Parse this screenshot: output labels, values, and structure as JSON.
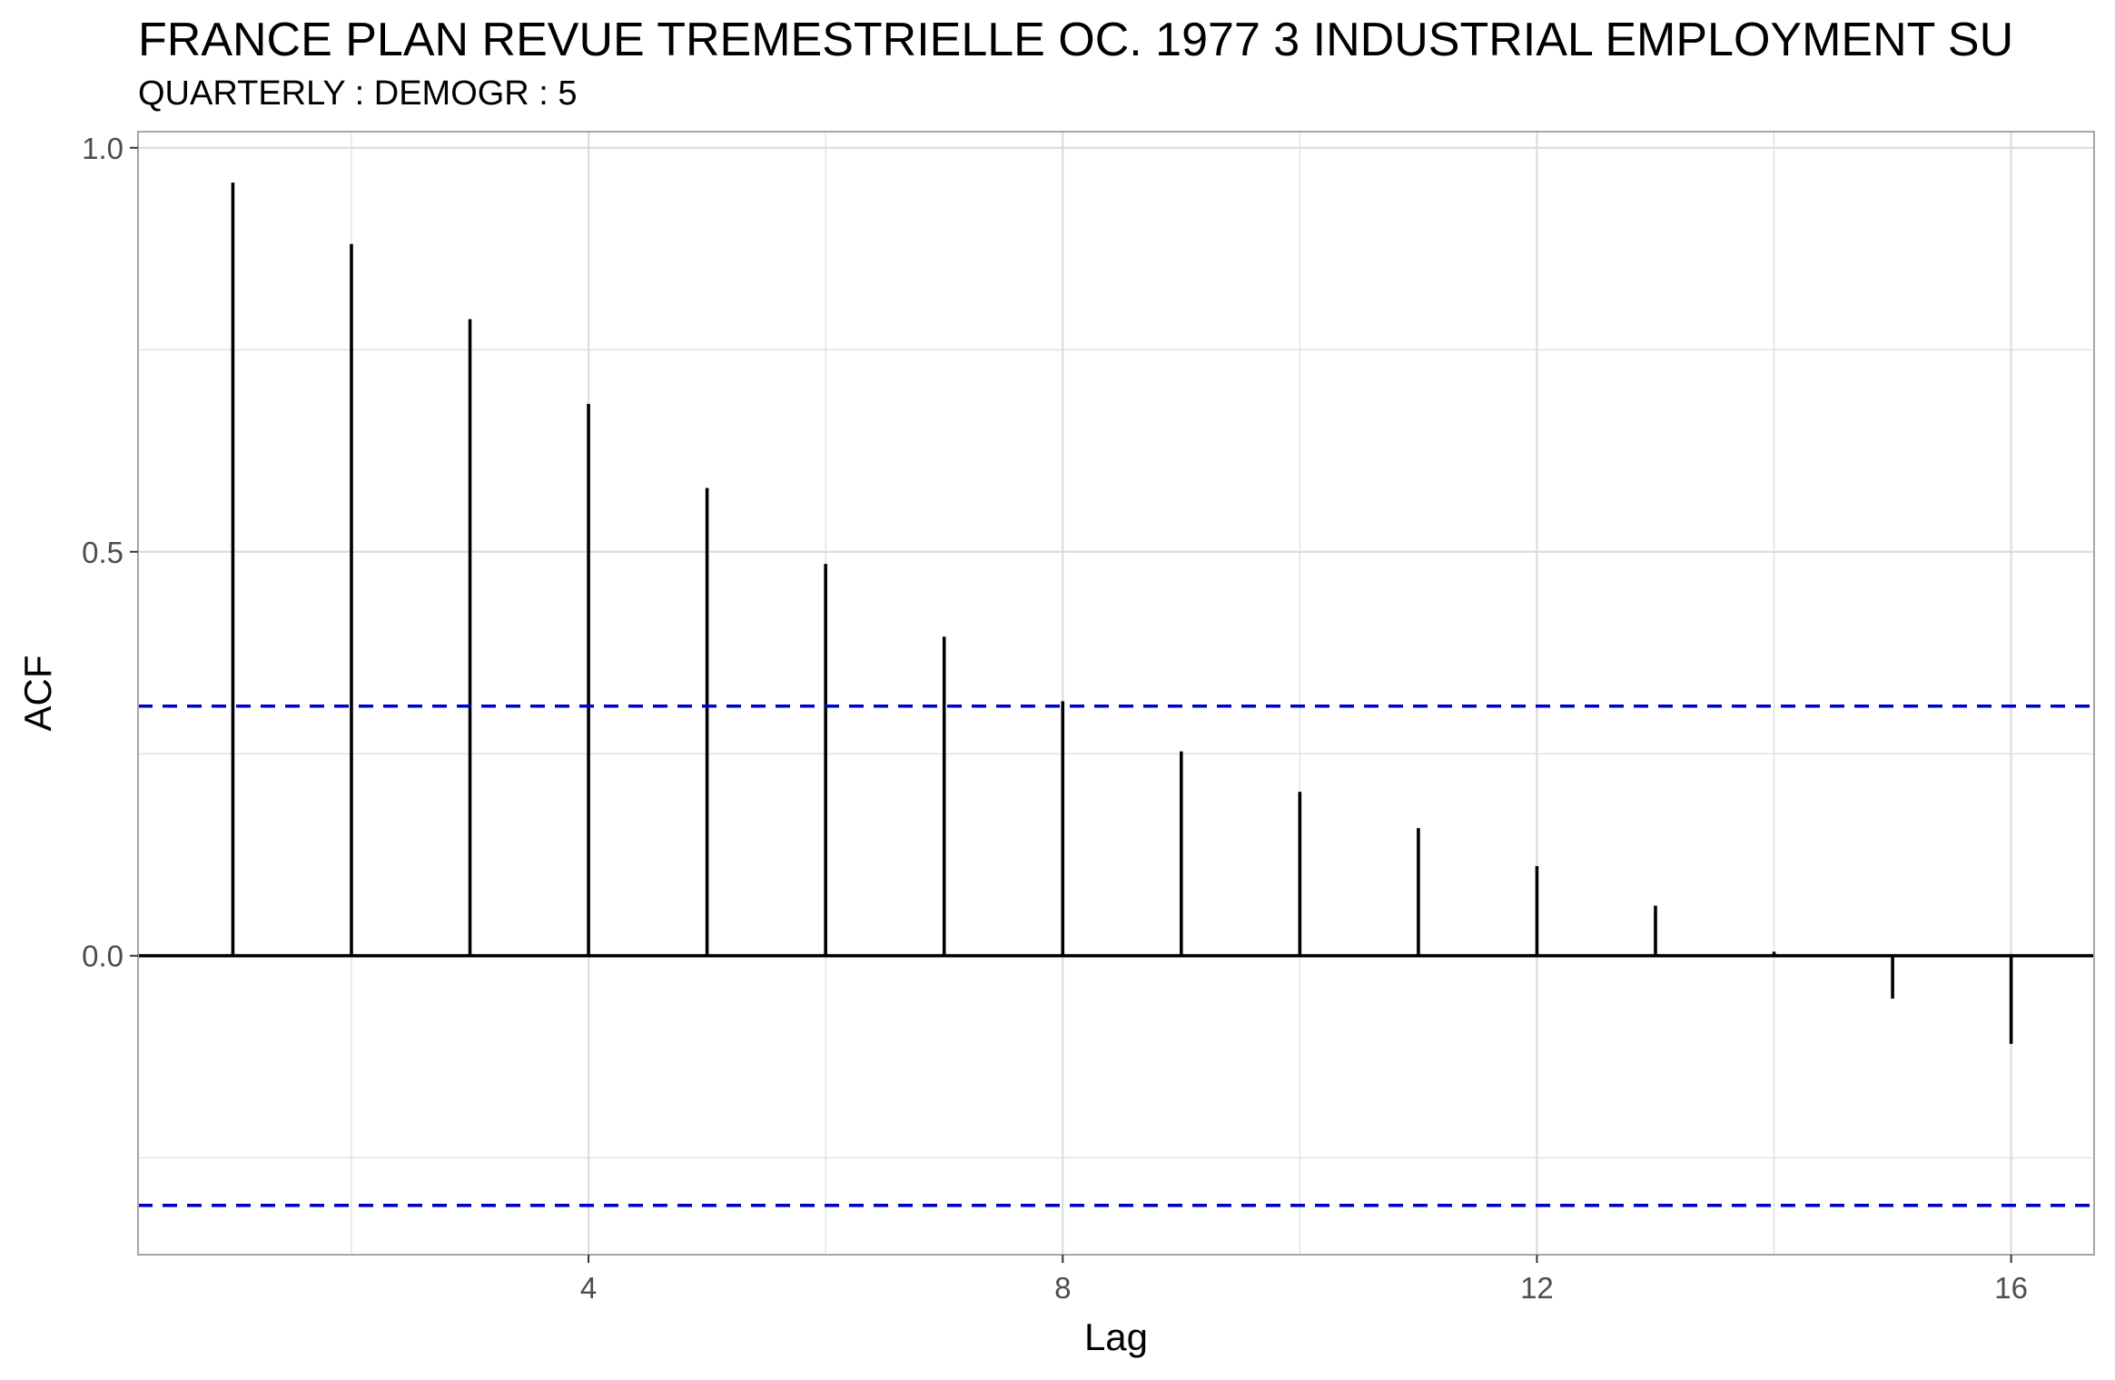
{
  "title": "FRANCE PLAN REVUE TREMESTRIELLE OC. 1977 3 INDUSTRIAL EMPLOYMENT SU",
  "subtitle": "QUARTERLY : DEMOGR : 5",
  "chart_data": {
    "type": "bar",
    "title": "FRANCE PLAN REVUE TREMESTRIELLE OC. 1977 3 INDUSTRIAL EMPLOYMENT SU",
    "subtitle": "QUARTERLY : DEMOGR : 5",
    "xlabel": "Lag",
    "ylabel": "ACF",
    "x": [
      1,
      2,
      3,
      4,
      5,
      6,
      7,
      8,
      9,
      10,
      11,
      12,
      13,
      14,
      15,
      16
    ],
    "values": [
      0.957,
      0.881,
      0.788,
      0.683,
      0.579,
      0.485,
      0.395,
      0.315,
      0.253,
      0.203,
      0.158,
      0.111,
      0.062,
      0.005,
      -0.053,
      -0.109
    ],
    "confidence_band": [
      -0.309,
      0.309
    ],
    "xlim": [
      0.2,
      16.7
    ],
    "ylim": [
      -0.37,
      1.02
    ],
    "x_ticks": [
      4,
      8,
      12,
      16
    ],
    "y_ticks": [
      0.0,
      0.5,
      1.0
    ],
    "y_tick_labels": [
      "0.0",
      "0.5",
      "1.0"
    ],
    "grid": true,
    "colors": {
      "bars": "#000000",
      "confidence_band": "#0000cc",
      "grid": "#dcdcdc",
      "frame": "#a6a6a6"
    }
  }
}
